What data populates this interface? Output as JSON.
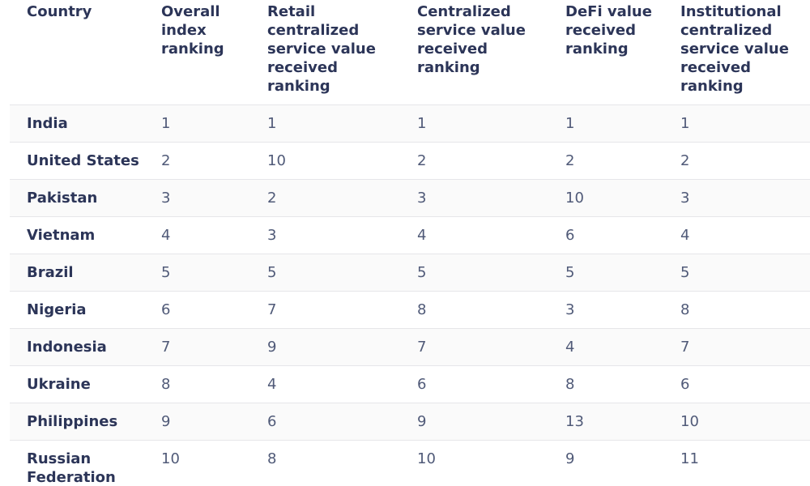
{
  "table": {
    "columns": [
      "Country",
      "Overall index ranking",
      "Retail centralized service value received ranking",
      "Centralized service value received ranking",
      "DeFi value received ranking",
      "Institutional centralized service value received ranking"
    ],
    "rows": [
      [
        "India",
        1,
        1,
        1,
        1,
        1
      ],
      [
        "United States",
        2,
        10,
        2,
        2,
        2
      ],
      [
        "Pakistan",
        3,
        2,
        3,
        10,
        3
      ],
      [
        "Vietnam",
        4,
        3,
        4,
        6,
        4
      ],
      [
        "Brazil",
        5,
        5,
        5,
        5,
        5
      ],
      [
        "Nigeria",
        6,
        7,
        8,
        3,
        8
      ],
      [
        "Indonesia",
        7,
        9,
        7,
        4,
        7
      ],
      [
        "Ukraine",
        8,
        4,
        6,
        8,
        6
      ],
      [
        "Philippines",
        9,
        6,
        9,
        13,
        10
      ],
      [
        "Russian Federation",
        10,
        8,
        10,
        9,
        11
      ]
    ]
  }
}
